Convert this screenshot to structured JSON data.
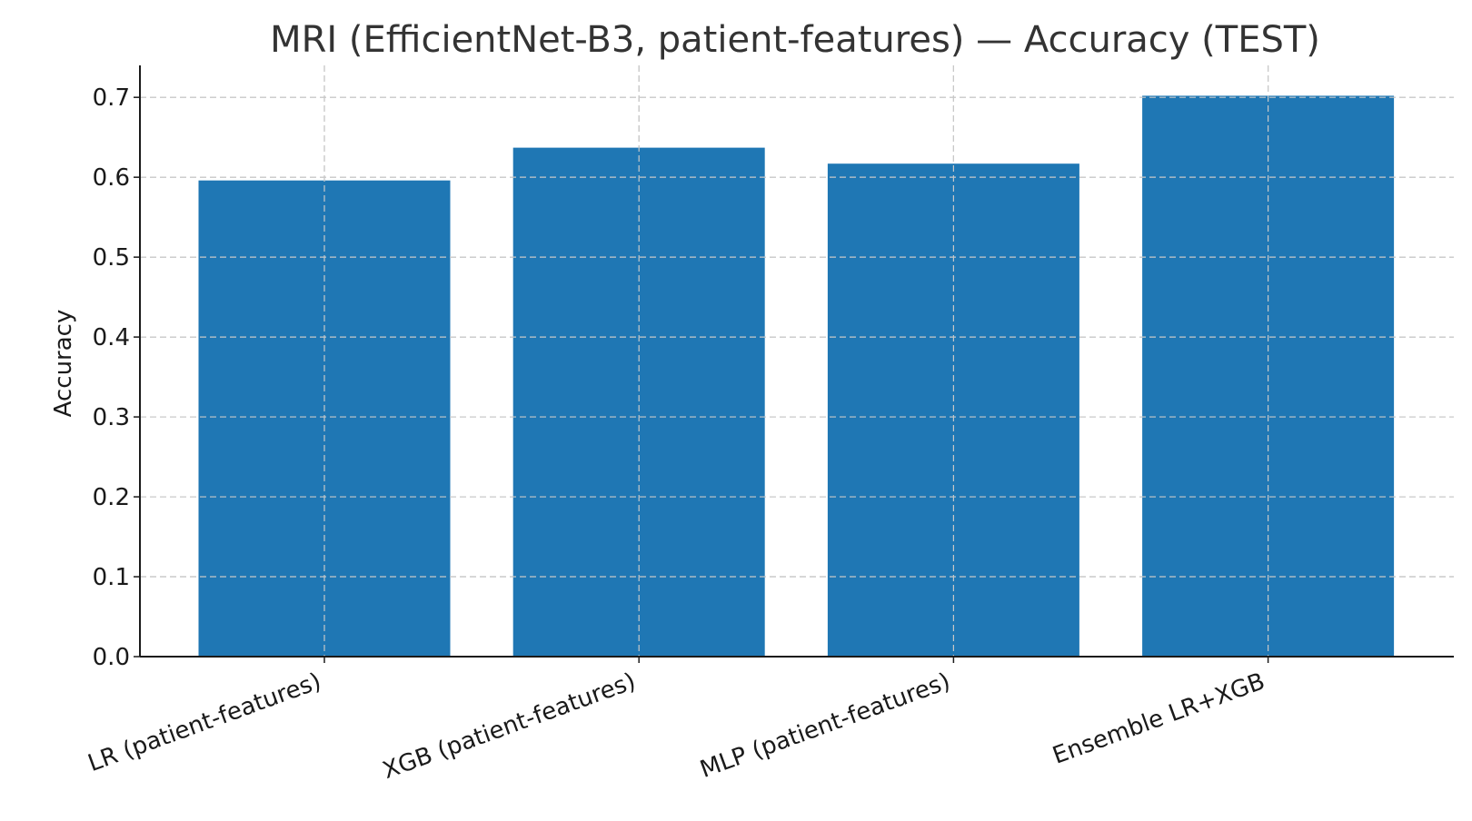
{
  "chart_data": {
    "type": "bar",
    "title": "MRI (EfficientNet-B3, patient-features) — Accuracy (TEST)",
    "xlabel": "",
    "ylabel": "Accuracy",
    "categories": [
      "LR (patient-features)",
      "XGB (patient-features)",
      "MLP (patient-features)",
      "Ensemble LR+XGB"
    ],
    "values": [
      0.596,
      0.637,
      0.617,
      0.702
    ],
    "ylim": [
      0,
      0.74
    ],
    "yticks": [
      0.0,
      0.1,
      0.2,
      0.3,
      0.4,
      0.5,
      0.6,
      0.7
    ],
    "ytick_labels": [
      "0.0",
      "0.1",
      "0.2",
      "0.3",
      "0.4",
      "0.5",
      "0.6",
      "0.7"
    ],
    "grid": true,
    "bar_color": "#1f77b4"
  }
}
